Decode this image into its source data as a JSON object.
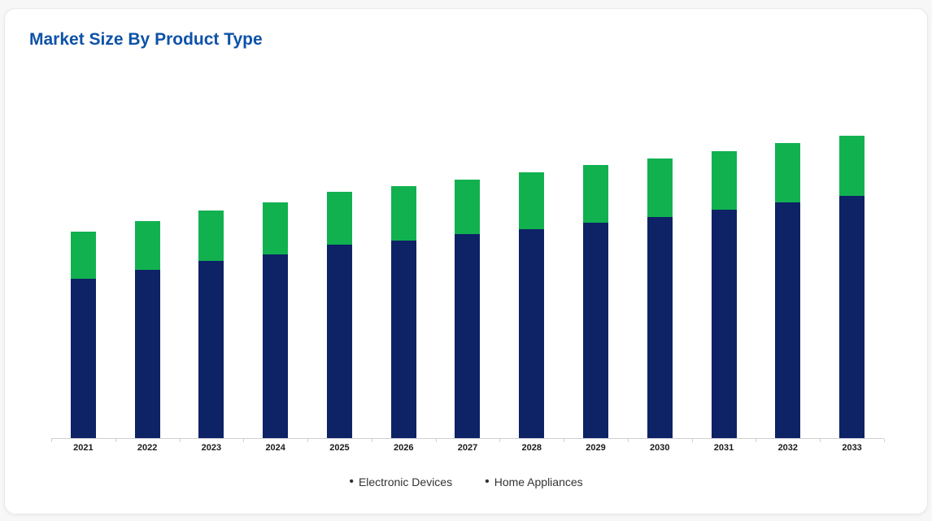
{
  "card": {
    "title": "Market Size By Product Type"
  },
  "colors": {
    "title_text": "#0d52a8",
    "electronic_devices": "#0e2266",
    "home_appliances": "#11b150",
    "axis_line": "#d0d0d0",
    "axis_label_text": "#1a1a1a",
    "legend_text": "#333333",
    "card_background": "#ffffff",
    "page_background": "#f7f7f7"
  },
  "legend": {
    "marker_char": "•",
    "items": [
      {
        "label": "Electronic Devices"
      },
      {
        "label": "Home Appliances"
      }
    ]
  },
  "chart_data": {
    "type": "bar",
    "stacked": true,
    "title": "Market Size By Product Type",
    "xlabel": "",
    "ylabel": "",
    "y_axis_visible": false,
    "grid": false,
    "legend_position": "bottom-center",
    "units": "relative (no y-axis labels shown; values estimated as rendered bar-segment heights in px)",
    "categories": [
      "2021",
      "2022",
      "2023",
      "2024",
      "2025",
      "2026",
      "2027",
      "2028",
      "2029",
      "2030",
      "2031",
      "2032",
      "2033"
    ],
    "series": [
      {
        "name": "Electronic Devices",
        "color": "#0e2266",
        "values": [
          196,
          207,
          218,
          226,
          238,
          243,
          251,
          257,
          265,
          272,
          281,
          290,
          298
        ]
      },
      {
        "name": "Home Appliances",
        "color": "#11b150",
        "values": [
          58,
          60,
          62,
          64,
          65,
          67,
          67,
          70,
          71,
          72,
          72,
          73,
          74
        ]
      }
    ],
    "totals": [
      254,
      267,
      280,
      290,
      303,
      310,
      318,
      327,
      336,
      344,
      353,
      363,
      372
    ]
  }
}
